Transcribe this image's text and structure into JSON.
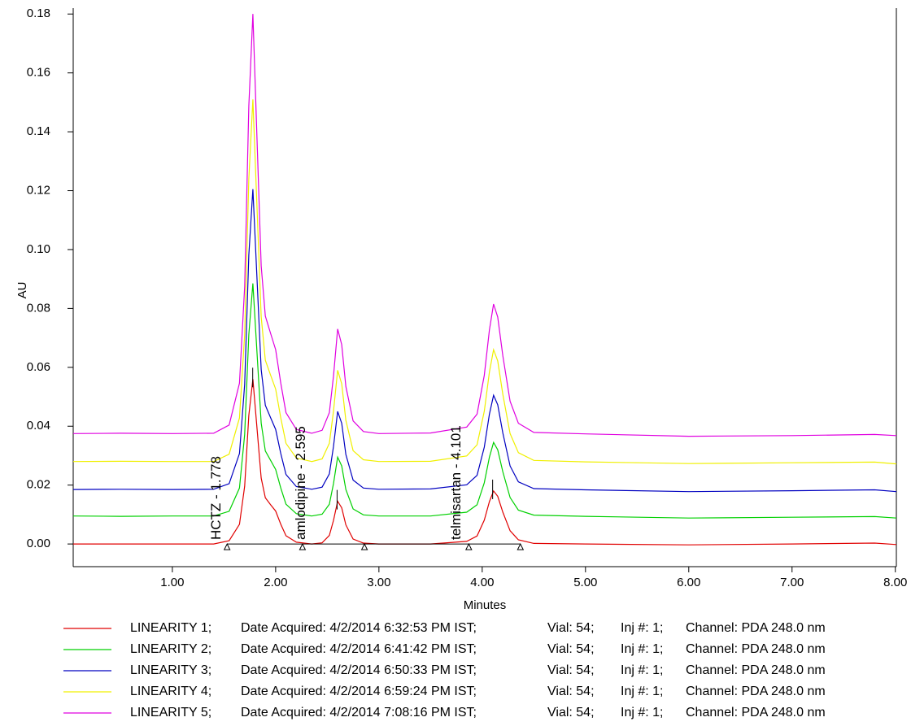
{
  "chart_data": {
    "type": "line",
    "x_label": "Minutes",
    "y_label": "AU",
    "xlim": [
      0.04,
      8.01
    ],
    "ylim": [
      -0.0077,
      0.182
    ],
    "xticks": [
      {
        "value": 1,
        "label": "1.00"
      },
      {
        "value": 2,
        "label": "2.00"
      },
      {
        "value": 3,
        "label": "3.00"
      },
      {
        "value": 4,
        "label": "4.00"
      },
      {
        "value": 5,
        "label": "5.00"
      },
      {
        "value": 6,
        "label": "6.00"
      },
      {
        "value": 7,
        "label": "7.00"
      },
      {
        "value": 8,
        "label": "8.00"
      }
    ],
    "yticks": [
      {
        "value": 0,
        "label": "0.00"
      },
      0.02,
      0.04,
      0.06,
      0.08,
      {
        "value": 0.1,
        "label": "0.10"
      },
      0.12,
      0.14,
      0.16,
      0.18
    ],
    "x": [
      0.04,
      0.5,
      1.0,
      1.4,
      1.55,
      1.65,
      1.7,
      1.74,
      1.78,
      1.82,
      1.86,
      1.9,
      1.95,
      2.0,
      2.05,
      2.1,
      2.2,
      2.35,
      2.45,
      2.52,
      2.56,
      2.6,
      2.64,
      2.68,
      2.75,
      2.85,
      3.0,
      3.5,
      3.85,
      3.95,
      4.02,
      4.07,
      4.11,
      4.15,
      4.2,
      4.27,
      4.35,
      4.5,
      5.0,
      6.0,
      7.0,
      7.8,
      8.01
    ],
    "series": [
      {
        "name": "LINEARITY 1;",
        "acquired": "Date Acquired: 4/2/2014 6:32:53 PM IST;",
        "vial": "Vial: 54;",
        "injection": "Inj #: 1;",
        "channel": "Channel: PDA 248.0 nm",
        "color": "#e00000",
        "values": [
          0,
          0,
          0,
          0,
          0.0011,
          0.0067,
          0.0196,
          0.0437,
          0.056,
          0.0392,
          0.0224,
          0.0157,
          0.0134,
          0.0112,
          0.0067,
          0.0028,
          0.0006,
          0,
          0.0004,
          0.0029,
          0.008,
          0.0145,
          0.0123,
          0.0065,
          0.0017,
          0.0003,
          0,
          0,
          0.0009,
          0.0027,
          0.0081,
          0.0144,
          0.018,
          0.0162,
          0.0108,
          0.0045,
          0.0014,
          0.0002,
          0,
          -0.0003,
          0,
          0.0003,
          -0.0002
        ]
      },
      {
        "name": "LINEARITY 2;",
        "acquired": "Date Acquired: 4/2/2014 6:41:42 PM IST;",
        "vial": "Vial: 54;",
        "injection": "Inj #: 1;",
        "channel": "Channel: PDA 248.0 nm",
        "color": "#00d000",
        "values": [
          0.0095,
          0.0094,
          0.0095,
          0.0095,
          0.0111,
          0.019,
          0.0372,
          0.0711,
          0.0885,
          0.0648,
          0.0411,
          0.0316,
          0.0285,
          0.0253,
          0.019,
          0.0135,
          0.0103,
          0.0095,
          0.0101,
          0.0135,
          0.0205,
          0.0295,
          0.0265,
          0.0185,
          0.0119,
          0.0099,
          0.0095,
          0.0095,
          0.0108,
          0.0133,
          0.0208,
          0.0295,
          0.0345,
          0.032,
          0.0245,
          0.0158,
          0.0115,
          0.0098,
          0.0094,
          0.0088,
          0.0091,
          0.0093,
          0.0088
        ]
      },
      {
        "name": "LINEARITY 3;",
        "acquired": "Date Acquired: 4/2/2014 6:50:33 PM IST;",
        "vial": "Vial: 54;",
        "injection": "Inj #: 1;",
        "channel": "Channel: PDA 248.0 nm",
        "color": "#0000c0",
        "values": [
          0.0185,
          0.0186,
          0.0185,
          0.0186,
          0.0205,
          0.0307,
          0.0542,
          0.0981,
          0.1205,
          0.0899,
          0.0593,
          0.0471,
          0.043,
          0.0389,
          0.0307,
          0.0236,
          0.0195,
          0.0186,
          0.0193,
          0.0238,
          0.0331,
          0.045,
          0.041,
          0.0304,
          0.0217,
          0.019,
          0.0186,
          0.0187,
          0.0201,
          0.0233,
          0.0329,
          0.0441,
          0.0505,
          0.0473,
          0.0377,
          0.0265,
          0.0211,
          0.0188,
          0.0184,
          0.0178,
          0.0181,
          0.0184,
          0.0178
        ]
      },
      {
        "name": "LINEARITY 4;",
        "acquired": "Date Acquired: 4/2/2014 6:59:24 PM IST;",
        "vial": "Vial: 54;",
        "injection": "Inj #: 1;",
        "channel": "Channel: PDA 248.0 nm",
        "color": "#f0f000",
        "values": [
          0.028,
          0.0281,
          0.028,
          0.028,
          0.0305,
          0.0428,
          0.0711,
          0.1239,
          0.151,
          0.1141,
          0.0772,
          0.0624,
          0.0575,
          0.0526,
          0.0428,
          0.0342,
          0.0292,
          0.028,
          0.0289,
          0.0342,
          0.0451,
          0.059,
          0.0544,
          0.042,
          0.0317,
          0.0286,
          0.028,
          0.0281,
          0.0299,
          0.0337,
          0.0451,
          0.0584,
          0.066,
          0.0622,
          0.0508,
          0.0375,
          0.031,
          0.0284,
          0.0279,
          0.0273,
          0.0276,
          0.0278,
          0.0272
        ]
      },
      {
        "name": "LINEARITY 5;",
        "acquired": "Date Acquired: 4/2/2014 7:08:16 PM IST;",
        "vial": "Vial: 54;",
        "injection": "Inj #: 1;",
        "channel": "Channel: PDA 248.0 nm",
        "color": "#e000e0",
        "values": [
          0.0375,
          0.0376,
          0.0375,
          0.0376,
          0.0404,
          0.0546,
          0.0874,
          0.1487,
          0.18,
          0.1373,
          0.0945,
          0.0774,
          0.0717,
          0.066,
          0.0546,
          0.0446,
          0.0389,
          0.0376,
          0.0386,
          0.0446,
          0.057,
          0.073,
          0.0677,
          0.0535,
          0.0418,
          0.0382,
          0.0375,
          0.0377,
          0.0397,
          0.0441,
          0.0573,
          0.0727,
          0.0815,
          0.0771,
          0.0639,
          0.0485,
          0.041,
          0.0379,
          0.0374,
          0.0366,
          0.0368,
          0.0372,
          0.0368
        ]
      }
    ],
    "annotations": [
      {
        "text": "HCTZ - 1.778",
        "x": 1.778
      },
      {
        "text": "amlodipine - 2.595",
        "x": 2.595
      },
      {
        "text": "telmisartan - 4.101",
        "x": 4.101
      }
    ],
    "baseline_marks_x": [
      1.53,
      2.26,
      2.86,
      3.87,
      4.37
    ]
  }
}
